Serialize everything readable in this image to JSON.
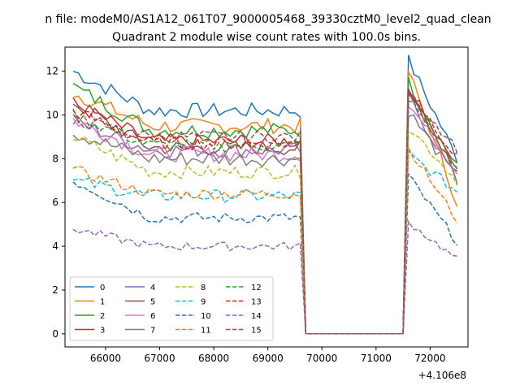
{
  "chart_data": {
    "type": "line",
    "suptitle": "n file: modeM0/AS1A12_061T07_9000005468_39330cztM0_level2_quad_clean",
    "title": "Quadrant 2 module wise count rates with 100.0s bins.",
    "xlabel": "",
    "ylabel": "",
    "x_offset_label": "+4.106e8",
    "xlim": [
      65250,
      72700
    ],
    "ylim": [
      -0.6,
      13.1
    ],
    "xticks": [
      66000,
      67000,
      68000,
      69000,
      70000,
      71000,
      72000
    ],
    "yticks": [
      0,
      2,
      4,
      6,
      8,
      10,
      12
    ],
    "xtick_labels": [
      "66000",
      "67000",
      "68000",
      "69000",
      "70000",
      "71000",
      "72000"
    ],
    "ytick_labels": [
      "0",
      "2",
      "4",
      "6",
      "8",
      "10",
      "12"
    ],
    "grid": false,
    "legend": "lower-left",
    "series": [
      {
        "name": "0",
        "color": "#1f77b4",
        "dash": "solid",
        "base": 10.2,
        "start": 12.0,
        "gap_end": 12.5,
        "end": 8.0,
        "noise": 0.35
      },
      {
        "name": "1",
        "color": "#ff7f0e",
        "dash": "solid",
        "base": 9.5,
        "start": 11.0,
        "gap_end": 12.0,
        "end": 6.0,
        "noise": 0.35
      },
      {
        "name": "2",
        "color": "#2ca02c",
        "dash": "solid",
        "base": 9.3,
        "start": 11.3,
        "gap_end": 11.5,
        "end": 7.5,
        "noise": 0.35
      },
      {
        "name": "3",
        "color": "#d62728",
        "dash": "solid",
        "base": 8.8,
        "start": 10.5,
        "gap_end": 11.3,
        "end": 7.3,
        "noise": 0.35
      },
      {
        "name": "4",
        "color": "#9467bd",
        "dash": "solid",
        "base": 8.4,
        "start": 9.7,
        "gap_end": 10.8,
        "end": 7.0,
        "noise": 0.35
      },
      {
        "name": "5",
        "color": "#8c564b",
        "dash": "solid",
        "base": 8.5,
        "start": 10.6,
        "gap_end": 11.0,
        "end": 7.8,
        "noise": 0.35
      },
      {
        "name": "6",
        "color": "#e377c2",
        "dash": "solid",
        "base": 8.2,
        "start": 9.8,
        "gap_end": 10.5,
        "end": 7.5,
        "noise": 0.35
      },
      {
        "name": "7",
        "color": "#7f7f7f",
        "dash": "solid",
        "base": 8.0,
        "start": 9.2,
        "gap_end": 10.2,
        "end": 7.0,
        "noise": 0.35
      },
      {
        "name": "8",
        "color": "#bcbd22",
        "dash": "dashed",
        "base": 7.4,
        "start": 9.0,
        "gap_end": 9.5,
        "end": 7.0,
        "noise": 0.3
      },
      {
        "name": "9",
        "color": "#17becf",
        "dash": "dashed",
        "base": 6.3,
        "start": 7.0,
        "gap_end": 8.2,
        "end": 6.5,
        "noise": 0.3
      },
      {
        "name": "10",
        "color": "#1f77b4",
        "dash": "dashed",
        "base": 5.3,
        "start": 7.0,
        "gap_end": 7.2,
        "end": 4.2,
        "noise": 0.25
      },
      {
        "name": "11",
        "color": "#ff7f0e",
        "dash": "dashed",
        "base": 6.4,
        "start": 7.5,
        "gap_end": 8.5,
        "end": 5.2,
        "noise": 0.25
      },
      {
        "name": "12",
        "color": "#2ca02c",
        "dash": "dashed",
        "base": 8.6,
        "start": 10.0,
        "gap_end": 10.8,
        "end": 7.5,
        "noise": 0.3
      },
      {
        "name": "13",
        "color": "#d62728",
        "dash": "dashed",
        "base": 8.7,
        "start": 10.2,
        "gap_end": 11.2,
        "end": 8.0,
        "noise": 0.3
      },
      {
        "name": "14",
        "color": "#9467bd",
        "dash": "dashed",
        "base": 4.0,
        "start": 4.8,
        "gap_end": 5.1,
        "end": 3.4,
        "noise": 0.2
      },
      {
        "name": "15",
        "color": "#8c564b",
        "dash": "dashed",
        "base": 9.0,
        "start": 9.8,
        "gap_end": 11.0,
        "end": 8.5,
        "noise": 0.3
      }
    ],
    "x_start": 65400,
    "x_step": 100,
    "gap_start": 69700,
    "gap_stop": 71500,
    "x_end": 72500
  }
}
